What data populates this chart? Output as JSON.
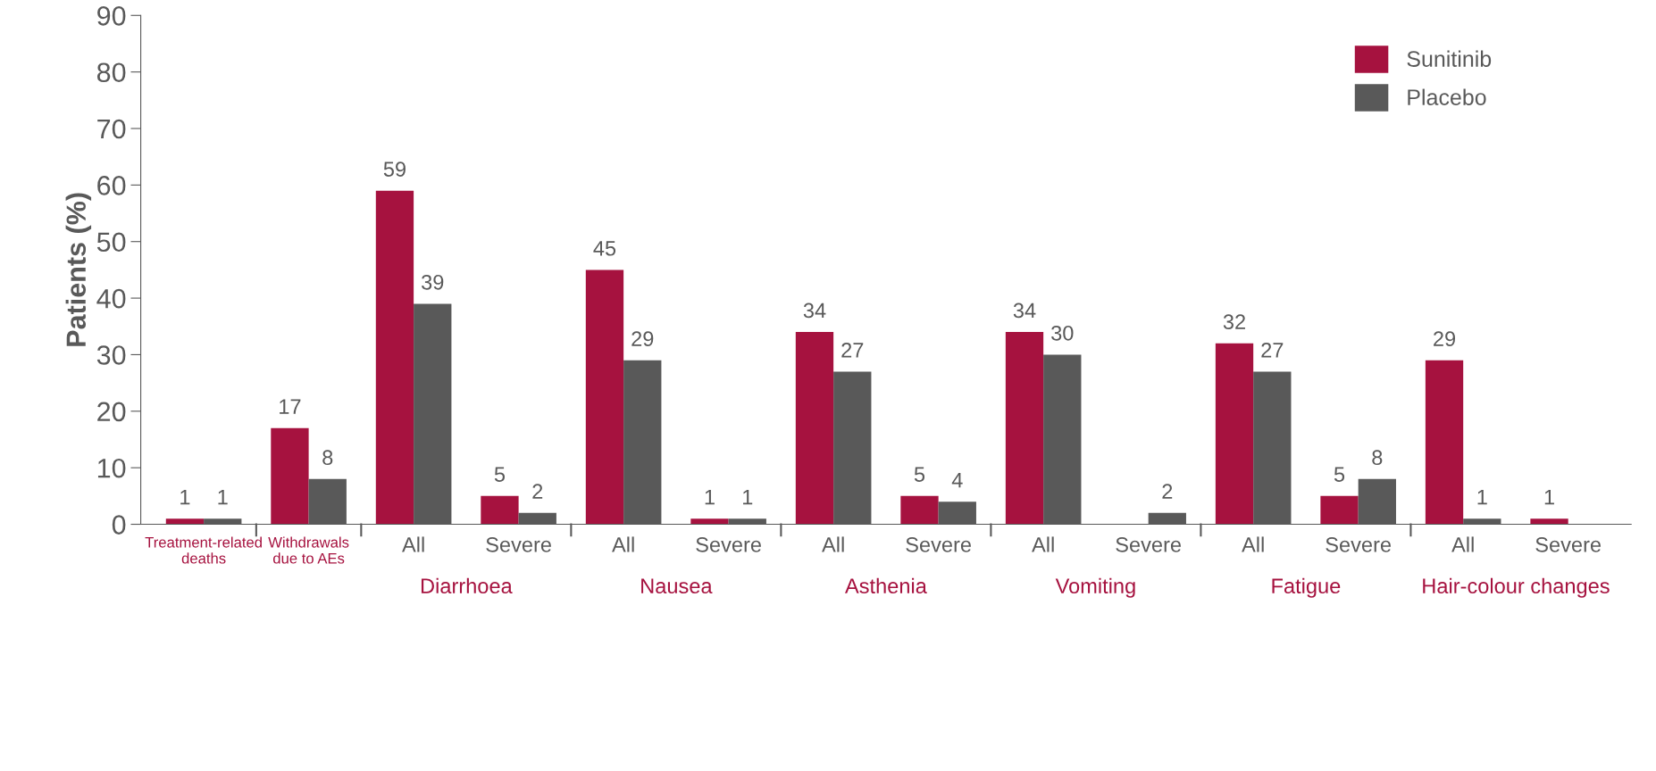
{
  "chart_data": {
    "type": "bar",
    "ylabel": "Patients (%)",
    "categories": [
      "Treatment-related deaths",
      "Withdrawals due to AEs",
      "All",
      "Severe",
      "All",
      "Severe",
      "All",
      "Severe",
      "All",
      "Severe",
      "All",
      "Severe",
      "All",
      "Severe"
    ],
    "series": [
      {
        "name": "Sunitinib",
        "color": "#a6123f",
        "values": [
          1,
          17,
          59,
          5,
          45,
          1,
          34,
          5,
          34,
          null,
          32,
          5,
          29,
          1
        ],
        "value_labels": [
          "1",
          "17",
          "59",
          "5",
          "45",
          "1",
          "34",
          "5",
          "34",
          null,
          "32",
          "5",
          "29",
          "1"
        ]
      },
      {
        "name": "Placebo",
        "color": "#595959",
        "values": [
          1,
          8,
          39,
          2,
          29,
          1,
          27,
          4,
          30,
          2,
          27,
          8,
          1,
          null
        ],
        "value_labels": [
          "1",
          "8",
          "39",
          "2",
          "29",
          "1",
          "27",
          "4",
          "30",
          "2",
          "27",
          "8",
          "1",
          null
        ]
      }
    ],
    "annotations": [
      "Diarrhoea",
      "Nausea",
      "Asthenia",
      "Vomiting",
      "Fatigue",
      "Hair-colour changes"
    ],
    "ylim": [
      0,
      90
    ],
    "yticks": [
      0,
      10,
      20,
      30,
      40,
      50,
      60,
      70,
      80,
      90
    ],
    "grid": false,
    "legend": "top right"
  }
}
